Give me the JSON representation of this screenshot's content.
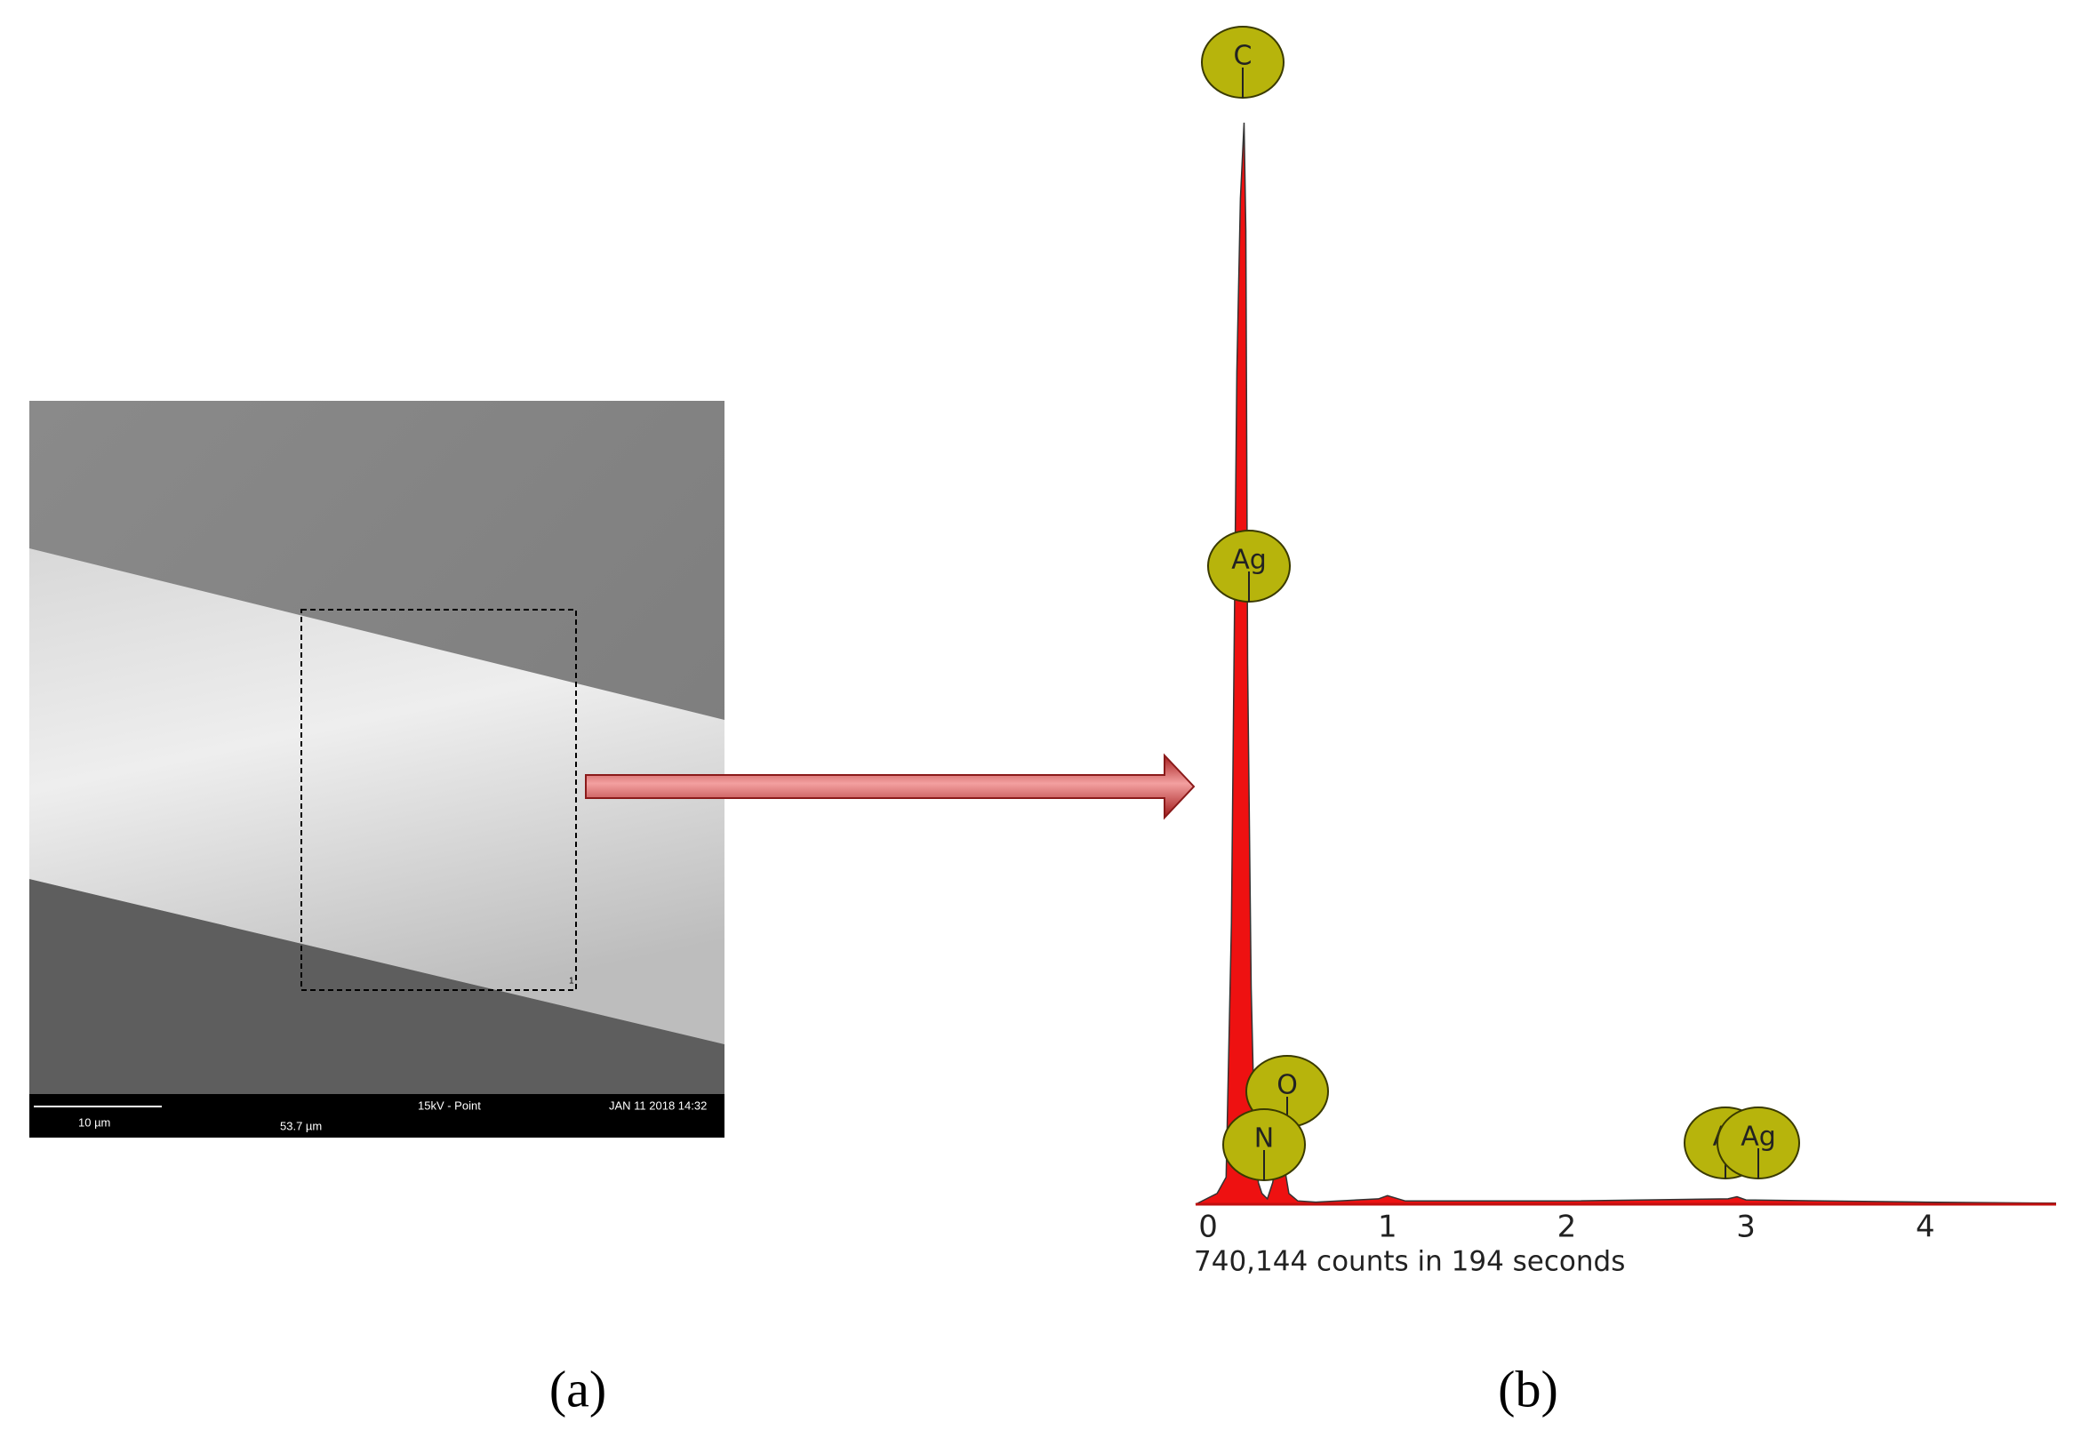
{
  "chart_data": {
    "type": "area",
    "x": [
      -0.07,
      0.05,
      0.1,
      0.13,
      0.16,
      0.18,
      0.2,
      0.21,
      0.22,
      0.24,
      0.26,
      0.28,
      0.3,
      0.33,
      0.36,
      0.39,
      0.42,
      0.45,
      0.5,
      0.6,
      0.95,
      1.0,
      1.1,
      2.0,
      2.9,
      2.95,
      3.0,
      4.0,
      4.73
    ],
    "values": [
      0,
      1,
      2.5,
      26,
      77,
      93,
      100,
      90,
      50,
      20,
      6,
      2,
      1,
      0.5,
      2,
      5,
      4,
      1,
      0.3,
      0.2,
      0.5,
      0.8,
      0.3,
      0.3,
      0.5,
      0.7,
      0.4,
      0.2,
      0.1
    ],
    "color": "#ee1111",
    "xlim": [
      -0.07,
      4.73
    ],
    "ylim": [
      0,
      100
    ],
    "xticks": [
      0,
      1,
      2,
      3,
      4
    ],
    "element_labels": [
      "C",
      "Ag",
      "O",
      "N",
      "Al",
      "Ag"
    ],
    "footer": "740,144 counts in 194 seconds"
  },
  "image_panel": {
    "scale_bar": "10 µm",
    "mode": "15kV - Point",
    "date": "JAN 11 2018 14:32",
    "field_width": "53.7 µm",
    "region_number": "1"
  },
  "panel_labels": [
    "(a)",
    "(b)"
  ]
}
